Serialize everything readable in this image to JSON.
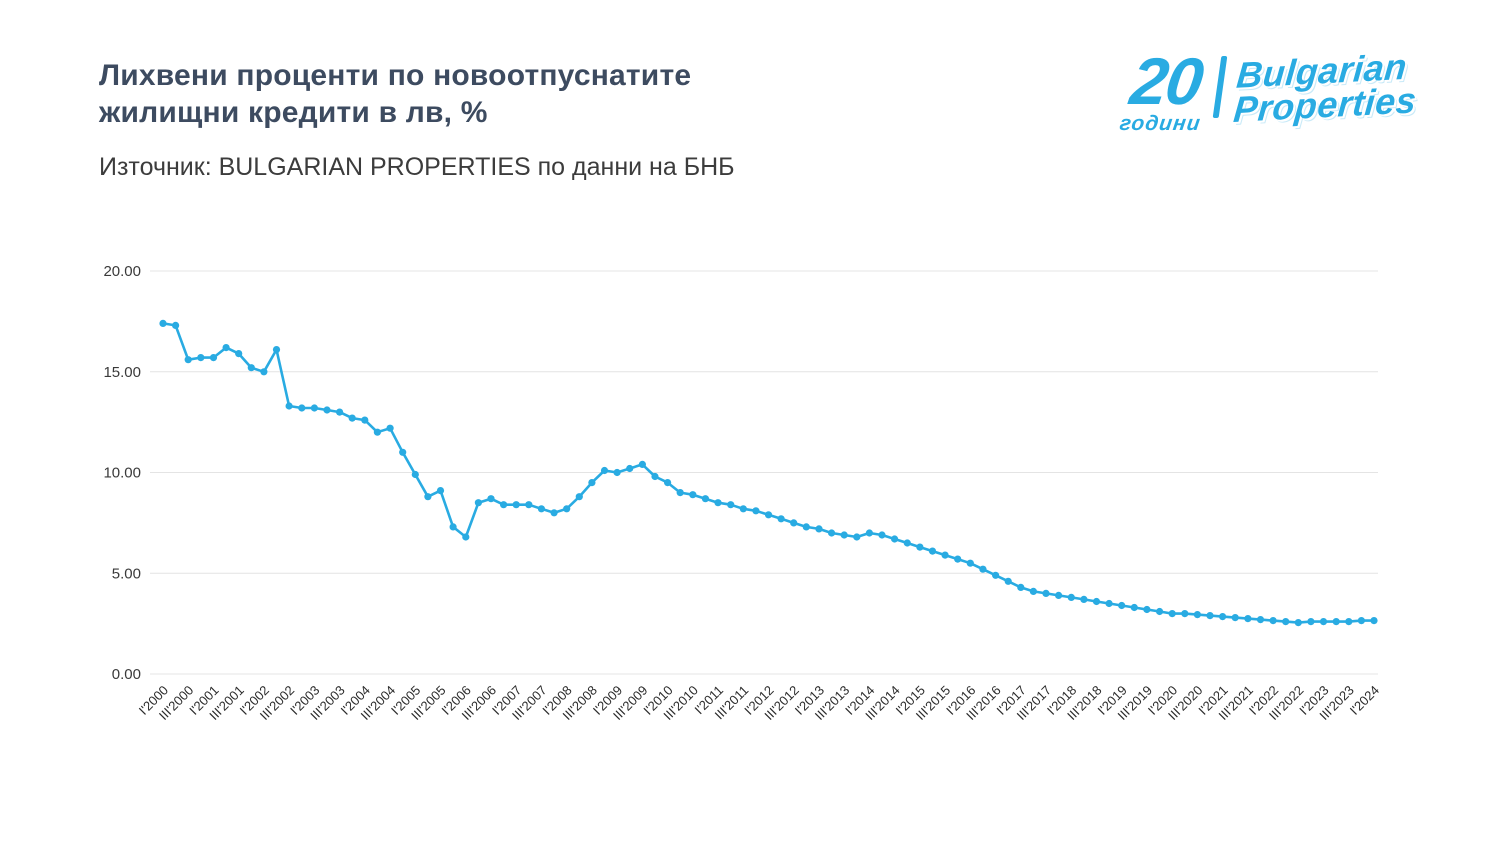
{
  "header": {
    "title": "Лихвени проценти по новоотпуснатите жилищни кредити в лв, %",
    "source": "Източник: BULGARIAN PROPERTIES по данни на БНБ"
  },
  "logo": {
    "number": "20",
    "years_label": "години",
    "brand_line1": "Bulgarian",
    "brand_line2": "Properties",
    "color": "#29ABE2"
  },
  "chart_data": {
    "type": "line",
    "title": "Лихвени проценти по новоотпуснатите жилищни кредити в лв, %",
    "xlabel": "",
    "ylabel": "",
    "ylim": [
      0,
      20
    ],
    "y_ticks": [
      "0.00",
      "5.00",
      "10.00",
      "15.00",
      "20.00"
    ],
    "grid": true,
    "grid_color": "#e4e4e4",
    "legend": "none",
    "series_color": "#29ABE2",
    "label_every": 2,
    "tick_labels": [
      "I'2000",
      "III'2000",
      "I'2001",
      "III'2001",
      "I'2002",
      "III'2002",
      "I'2003",
      "III'2003",
      "I'2004",
      "III'2004",
      "I'2005",
      "III'2005",
      "I'2006",
      "III'2006",
      "I'2007",
      "III'2007",
      "I'2008",
      "III'2008",
      "I'2009",
      "III'2009",
      "I'2010",
      "III'2010",
      "I'2011",
      "III'2011",
      "I'2012",
      "III'2012",
      "I'2013",
      "III'2013",
      "I'2014",
      "III'2014",
      "I'2015",
      "III'2015",
      "I'2016",
      "III'2016",
      "I'2017",
      "III'2017",
      "I'2018",
      "III'2018",
      "I'2019",
      "III'2019",
      "I'2020",
      "III'2020",
      "I'2021",
      "III'2021",
      "I'2022",
      "III'2022",
      "I'2023",
      "III'2023",
      "I'2024"
    ],
    "values": [
      17.4,
      17.3,
      15.6,
      15.7,
      15.7,
      16.2,
      15.9,
      15.2,
      15.0,
      16.1,
      13.3,
      13.2,
      13.2,
      13.1,
      13.0,
      12.7,
      12.6,
      12.0,
      12.2,
      11.0,
      9.9,
      8.8,
      9.1,
      7.3,
      6.8,
      8.5,
      8.7,
      8.4,
      8.4,
      8.4,
      8.2,
      8.0,
      8.2,
      8.8,
      9.5,
      10.1,
      10.0,
      10.2,
      10.4,
      9.8,
      9.5,
      9.0,
      8.9,
      8.7,
      8.5,
      8.4,
      8.2,
      8.1,
      7.9,
      7.7,
      7.5,
      7.3,
      7.2,
      7.0,
      6.9,
      6.8,
      7.0,
      6.9,
      6.7,
      6.5,
      6.3,
      6.1,
      5.9,
      5.7,
      5.5,
      5.2,
      4.9,
      4.6,
      4.3,
      4.1,
      4.0,
      3.9,
      3.8,
      3.7,
      3.6,
      3.5,
      3.4,
      3.3,
      3.2,
      3.1,
      3.0,
      3.0,
      2.95,
      2.9,
      2.85,
      2.8,
      2.75,
      2.7,
      2.65,
      2.6,
      2.55,
      2.6,
      2.6,
      2.6,
      2.6,
      2.65,
      2.65
    ]
  }
}
